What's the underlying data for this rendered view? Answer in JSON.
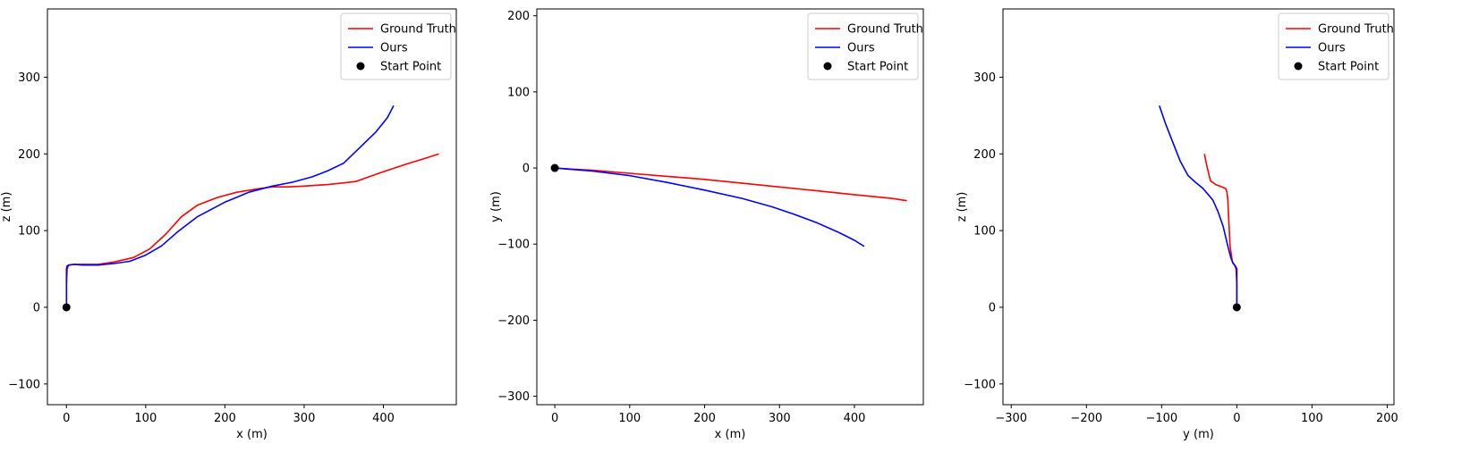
{
  "chart_data": [
    {
      "type": "line",
      "xlabel": "x (m)",
      "ylabel": "z (m)",
      "xlim": [
        -24,
        492
      ],
      "ylim": [
        -127,
        389
      ],
      "xticks": [
        0,
        100,
        200,
        300,
        400
      ],
      "yticks": [
        -100,
        0,
        100,
        200,
        300
      ],
      "legend_position": "top-right",
      "legend": [
        {
          "label": "Ground Truth",
          "kind": "line",
          "color": "#ff0000"
        },
        {
          "label": "Ours",
          "kind": "line",
          "color": "#0000ff"
        },
        {
          "label": "Start Point",
          "kind": "marker",
          "color": "#000000"
        }
      ],
      "series": [
        {
          "name": "Ground Truth",
          "color": "#ff0000",
          "x": [
            0,
            0,
            1,
            3,
            10,
            20,
            40,
            60,
            85,
            105,
            125,
            145,
            165,
            190,
            215,
            245,
            260,
            280,
            300,
            330,
            365,
            395,
            430,
            455,
            470
          ],
          "y": [
            0,
            30,
            50,
            55,
            56,
            56,
            56,
            59,
            65,
            76,
            95,
            118,
            133,
            143,
            150,
            155,
            157,
            157,
            158,
            160,
            164,
            175,
            187,
            195,
            200
          ]
        },
        {
          "name": "Ours",
          "color": "#0000ff",
          "x": [
            0,
            0,
            0,
            1,
            3,
            10,
            20,
            40,
            60,
            80,
            100,
            120,
            140,
            165,
            200,
            230,
            260,
            285,
            310,
            330,
            350,
            370,
            390,
            405,
            413
          ],
          "y": [
            0,
            30,
            50,
            54,
            55,
            56,
            55,
            55,
            57,
            60,
            68,
            80,
            98,
            118,
            137,
            150,
            158,
            163,
            170,
            178,
            188,
            208,
            228,
            247,
            263
          ]
        },
        {
          "name": "Start Point",
          "color": "#000000",
          "marker": true,
          "x": [
            0
          ],
          "y": [
            0
          ]
        }
      ]
    },
    {
      "type": "line",
      "xlabel": "x (m)",
      "ylabel": "y (m)",
      "xlim": [
        -24,
        492
      ],
      "ylim": [
        -311,
        209
      ],
      "xticks": [
        0,
        100,
        200,
        300,
        400
      ],
      "yticks": [
        -300,
        -200,
        -100,
        0,
        100,
        200
      ],
      "legend_position": "top-right",
      "legend": [
        {
          "label": "Ground Truth",
          "kind": "line",
          "color": "#ff0000"
        },
        {
          "label": "Ours",
          "kind": "line",
          "color": "#0000ff"
        },
        {
          "label": "Start Point",
          "kind": "marker",
          "color": "#000000"
        }
      ],
      "series": [
        {
          "name": "Ground Truth",
          "color": "#ff0000",
          "x": [
            0,
            50,
            100,
            150,
            200,
            250,
            300,
            350,
            400,
            450,
            470
          ],
          "y": [
            0,
            -3,
            -7,
            -11,
            -15,
            -20,
            -25,
            -30,
            -35,
            -40,
            -43
          ]
        },
        {
          "name": "Ours",
          "color": "#0000ff",
          "x": [
            0,
            50,
            100,
            150,
            200,
            250,
            290,
            320,
            350,
            380,
            400,
            413
          ],
          "y": [
            0,
            -4,
            -10,
            -19,
            -29,
            -40,
            -51,
            -61,
            -72,
            -85,
            -95,
            -103
          ]
        },
        {
          "name": "Start Point",
          "color": "#000000",
          "marker": true,
          "x": [
            0
          ],
          "y": [
            0
          ]
        }
      ]
    },
    {
      "type": "line",
      "xlabel": "y (m)",
      "ylabel": "z (m)",
      "xlim": [
        -311,
        209
      ],
      "ylim": [
        -127,
        389
      ],
      "xticks": [
        -300,
        -200,
        -100,
        0,
        100,
        200
      ],
      "yticks": [
        -100,
        0,
        100,
        200,
        300
      ],
      "legend_position": "top-right",
      "legend": [
        {
          "label": "Ground Truth",
          "kind": "line",
          "color": "#ff0000"
        },
        {
          "label": "Ours",
          "kind": "line",
          "color": "#0000ff"
        },
        {
          "label": "Start Point",
          "kind": "marker",
          "color": "#000000"
        }
      ],
      "series": [
        {
          "name": "Ground Truth",
          "color": "#ff0000",
          "x": [
            0,
            0,
            -1,
            -3,
            -6,
            -9,
            -10,
            -11,
            -12,
            -13,
            -15,
            -20,
            -28,
            -35,
            -40,
            -43
          ],
          "y": [
            0,
            30,
            50,
            55,
            60,
            80,
            100,
            120,
            140,
            150,
            155,
            157,
            160,
            165,
            185,
            200
          ]
        },
        {
          "name": "Ours",
          "color": "#0000ff",
          "x": [
            0,
            0,
            0,
            -2,
            -5,
            -8,
            -12,
            -18,
            -25,
            -32,
            -45,
            -55,
            -65,
            -75,
            -85,
            -95,
            -103
          ],
          "y": [
            0,
            30,
            50,
            54,
            57,
            65,
            80,
            105,
            125,
            140,
            155,
            163,
            172,
            190,
            215,
            240,
            263
          ]
        },
        {
          "name": "Start Point",
          "color": "#000000",
          "marker": true,
          "x": [
            0
          ],
          "y": [
            0
          ]
        }
      ]
    }
  ]
}
